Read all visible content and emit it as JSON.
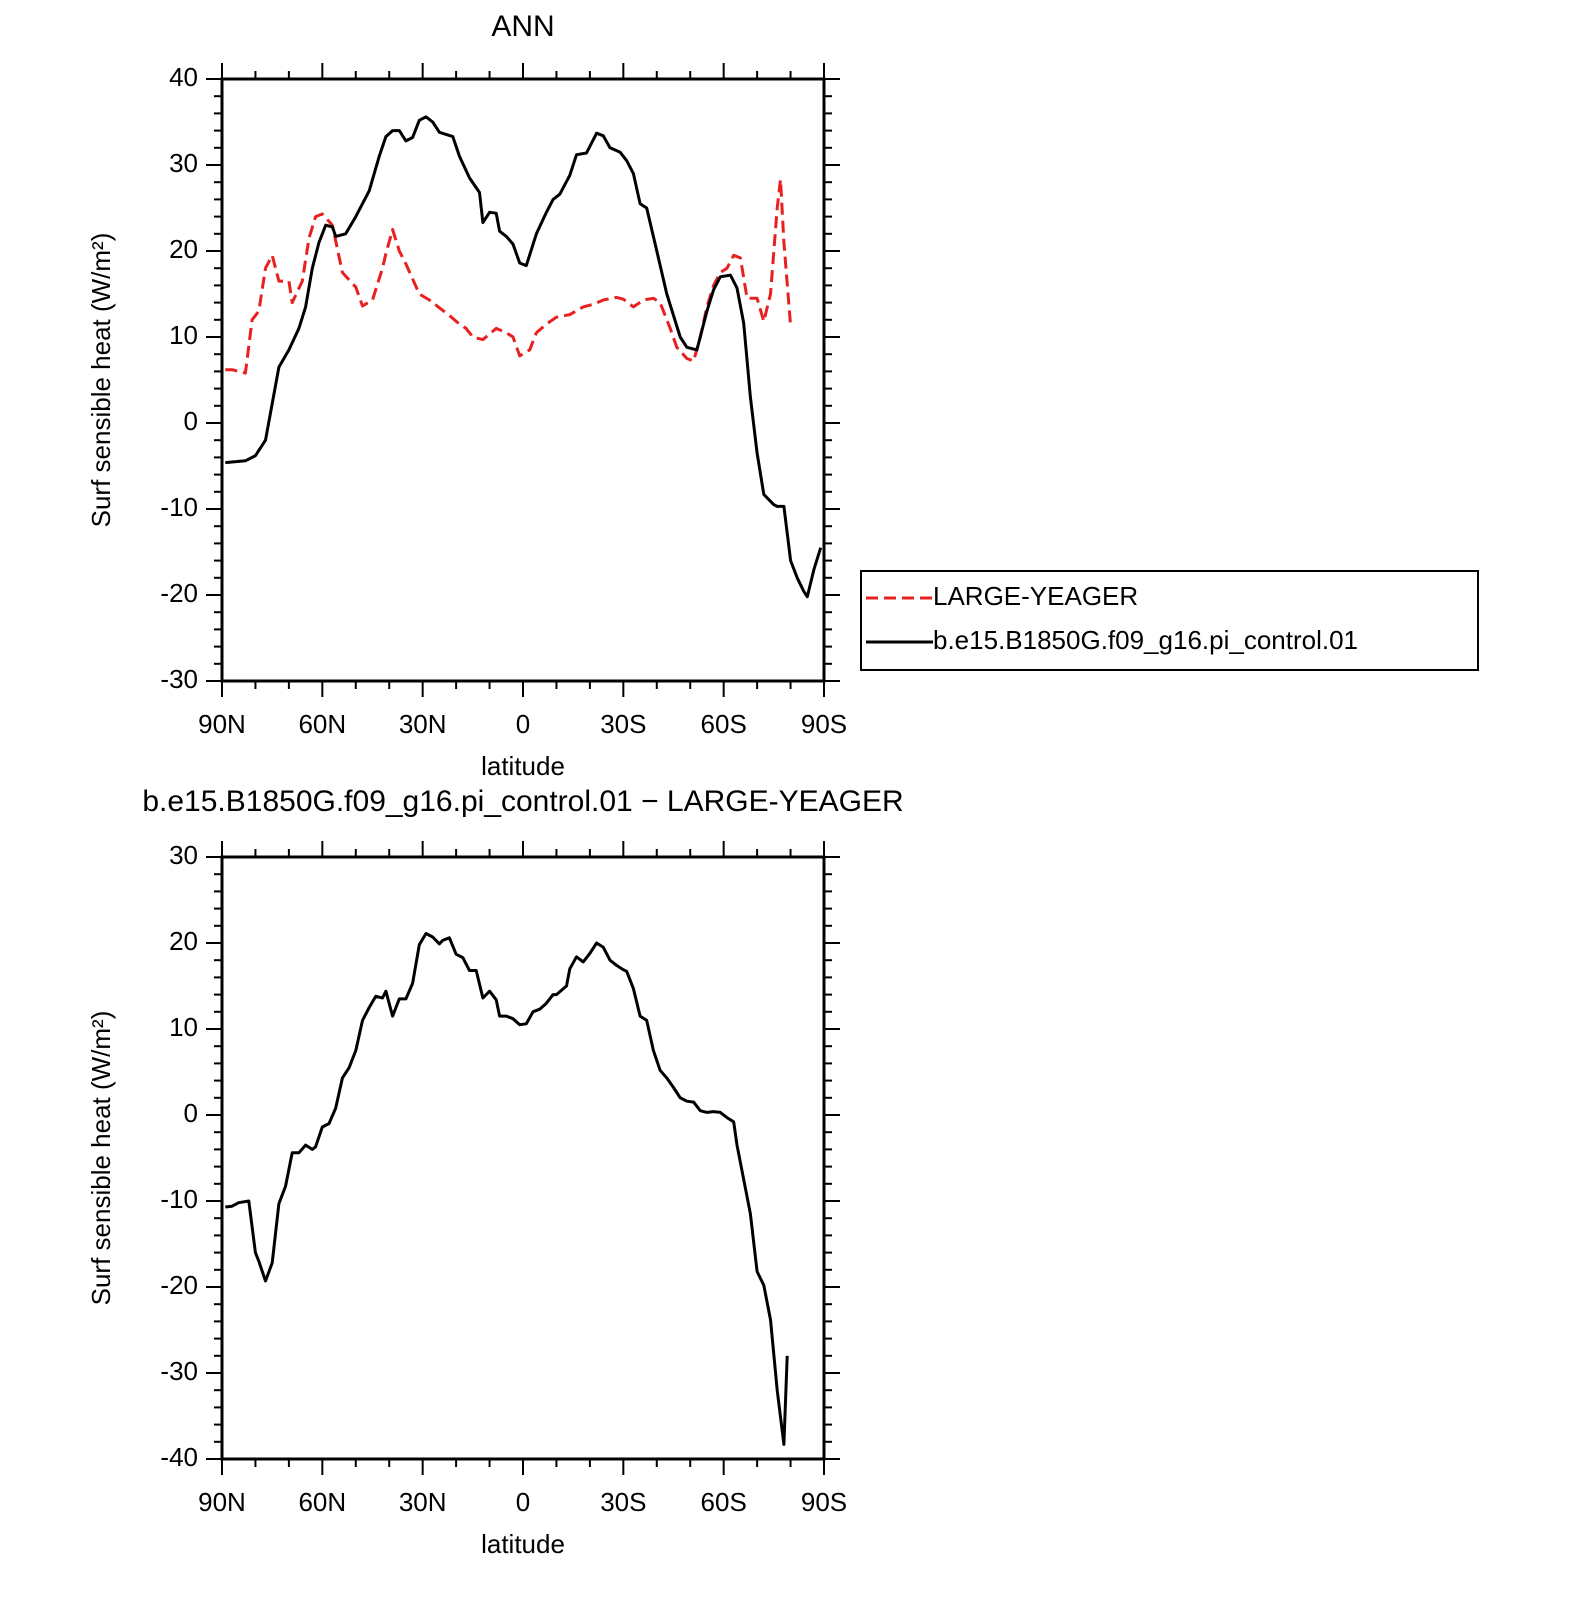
{
  "chart_data": [
    {
      "type": "line",
      "title": "ANN",
      "xlabel": "latitude",
      "ylabel": "Surf sensible heat (W/m²)",
      "xlim": [
        90,
        -90
      ],
      "xticks": [
        {
          "value": 90,
          "label": "90N"
        },
        {
          "value": 60,
          "label": "60N"
        },
        {
          "value": 30,
          "label": "30N"
        },
        0,
        {
          "value": -30,
          "label": "30S"
        },
        {
          "value": -60,
          "label": "60S"
        },
        {
          "value": -90,
          "label": "90S"
        }
      ],
      "ylim": [
        -30,
        40
      ],
      "yticks": [
        -30,
        -20,
        -10,
        0,
        10,
        20,
        30,
        40
      ],
      "legend": "right",
      "series": [
        {
          "name": "LARGE-YEAGER",
          "color": "#e8201f",
          "style": "dashed",
          "x": [
            89,
            87,
            83,
            81,
            79,
            77,
            75,
            73,
            70,
            69,
            66,
            64,
            62,
            60,
            57,
            54,
            50,
            48,
            45,
            42,
            41,
            39,
            37,
            35,
            31,
            28,
            25,
            22,
            19,
            17,
            15,
            12,
            8,
            5,
            3,
            1,
            -2,
            -4,
            -7,
            -10,
            -14,
            -18,
            -21,
            -24,
            -28,
            -30,
            -33,
            -36,
            -39,
            -41,
            -44,
            -46,
            -49,
            -51,
            -53,
            -55,
            -57,
            -59,
            -61,
            -63,
            -65,
            -67,
            -70,
            -72,
            -74,
            -76,
            -77,
            -78,
            -80
          ],
          "values": [
            6.2,
            6.2,
            5.8,
            12,
            13,
            18,
            19.5,
            16.5,
            16.5,
            14,
            16.5,
            21.5,
            24,
            24.3,
            23,
            17.5,
            15.8,
            13.6,
            14.3,
            18,
            19.7,
            22.5,
            20,
            18.5,
            15,
            14.3,
            13.4,
            12.5,
            11.5,
            11,
            10,
            9.7,
            11,
            10.5,
            10,
            7.8,
            8.5,
            10.5,
            11.5,
            12.3,
            12.6,
            13.5,
            13.8,
            14.3,
            14.6,
            14.4,
            13.5,
            14.3,
            14.5,
            14,
            11,
            8.8,
            7.5,
            7.2,
            10,
            13.5,
            16,
            17.5,
            18,
            19.5,
            19.2,
            14.5,
            14.5,
            11.8,
            15,
            25,
            28.3,
            21,
            11.3
          ]
        },
        {
          "name": "b.e15.B1850G.f09_g16.pi_control.01",
          "color": "#000000",
          "style": "solid",
          "x": [
            89,
            83,
            80,
            77,
            73,
            70,
            67,
            65,
            63,
            61,
            59,
            57,
            56,
            53,
            50,
            46,
            43,
            41,
            39,
            37,
            35,
            33,
            31,
            29,
            27,
            25,
            21,
            19,
            16,
            13,
            12,
            10,
            8,
            7,
            5,
            3,
            1,
            -1,
            -4,
            -7,
            -9,
            -11,
            -14,
            -16,
            -19,
            -22,
            -24,
            -26,
            -29,
            -31,
            -33,
            -35,
            -37,
            -40,
            -43,
            -47,
            -49,
            -52,
            -55,
            -57,
            -59,
            -62,
            -64,
            -66,
            -68,
            -70,
            -72,
            -75,
            -76,
            -78,
            -80,
            -82,
            -84,
            -85,
            -87,
            -89
          ],
          "values": [
            -4.6,
            -4.4,
            -3.8,
            -2,
            6.5,
            8.5,
            11,
            13.5,
            18,
            21,
            23,
            22.8,
            21.7,
            22,
            24,
            27,
            31,
            33.3,
            34,
            34,
            32.8,
            33.2,
            35.2,
            35.6,
            35,
            33.8,
            33.3,
            31,
            28.5,
            26.8,
            23.3,
            24.5,
            24.4,
            22.3,
            21.7,
            20.8,
            18.6,
            18.3,
            22,
            24.5,
            26,
            26.6,
            28.8,
            31.2,
            31.4,
            33.7,
            33.4,
            32,
            31.5,
            30.5,
            29,
            25.5,
            25,
            20,
            15,
            10,
            8.8,
            8.5,
            13,
            15.5,
            17,
            17.2,
            15.7,
            11.6,
            3,
            -3.5,
            -8.3,
            -9.5,
            -9.7,
            -9.7,
            -16,
            -18,
            -19.6,
            -20.2,
            -17,
            -14.5
          ]
        }
      ]
    },
    {
      "type": "line",
      "title": "b.e15.B1850G.f09_g16.pi_control.01 − LARGE-YEAGER",
      "xlabel": "latitude",
      "ylabel": "Surf sensible heat (W/m²)",
      "xlim": [
        90,
        -90
      ],
      "xticks": [
        {
          "value": 90,
          "label": "90N"
        },
        {
          "value": 60,
          "label": "60N"
        },
        {
          "value": 30,
          "label": "30N"
        },
        0,
        {
          "value": -30,
          "label": "30S"
        },
        {
          "value": -60,
          "label": "60S"
        },
        {
          "value": -90,
          "label": "90S"
        }
      ],
      "ylim": [
        -40,
        30
      ],
      "yticks": [
        -40,
        -30,
        -20,
        -10,
        0,
        10,
        20,
        30
      ],
      "series": [
        {
          "color": "#000000",
          "style": "solid",
          "x": [
            89,
            87,
            85,
            82,
            80,
            79,
            77,
            75,
            73,
            71,
            69,
            67,
            65,
            63,
            62,
            60,
            58,
            56,
            54,
            52,
            50,
            48,
            46,
            44,
            42,
            41,
            39,
            37,
            35,
            33,
            31,
            29,
            27,
            25,
            24,
            22,
            20,
            18,
            16,
            14,
            12,
            10,
            8,
            7,
            5,
            3,
            1,
            -1,
            -3,
            -5,
            -7,
            -9,
            -10,
            -13,
            -14,
            -16,
            -18,
            -20,
            -22,
            -24,
            -26,
            -28,
            -30,
            -31,
            -33,
            -35,
            -37,
            -39,
            -41,
            -43,
            -45,
            -47,
            -49,
            -51,
            -53,
            -55,
            -57,
            -59,
            -61,
            -63,
            -64,
            -66,
            -68,
            -70,
            -72,
            -74,
            -76,
            -78,
            -79
          ],
          "values": [
            -10.7,
            -10.6,
            -10.2,
            -10,
            -16,
            -17,
            -19.3,
            -17.2,
            -10.3,
            -8.3,
            -4.4,
            -4.4,
            -3.5,
            -4,
            -3.7,
            -1.4,
            -1,
            0.8,
            4.3,
            5.5,
            7.5,
            11,
            12.5,
            13.8,
            13.6,
            14.4,
            11.5,
            13.5,
            13.5,
            15.3,
            19.8,
            21.1,
            20.7,
            19.9,
            20.3,
            20.6,
            18.7,
            18.3,
            16.8,
            16.8,
            13.6,
            14.4,
            13.4,
            11.5,
            11.5,
            11.2,
            10.5,
            10.6,
            12,
            12.3,
            13,
            14,
            14,
            15,
            17,
            18.4,
            17.8,
            18.8,
            20,
            19.5,
            18,
            17.4,
            16.9,
            16.7,
            14.7,
            11.5,
            11,
            7.5,
            5.2,
            4.3,
            3.2,
            2,
            1.6,
            1.5,
            0.5,
            0.3,
            0.4,
            0.3,
            -0.3,
            -0.8,
            -3.5,
            -7.5,
            -11.5,
            -18.2,
            -19.8,
            -23.8,
            -32,
            -38.3,
            -28
          ]
        }
      ]
    }
  ]
}
